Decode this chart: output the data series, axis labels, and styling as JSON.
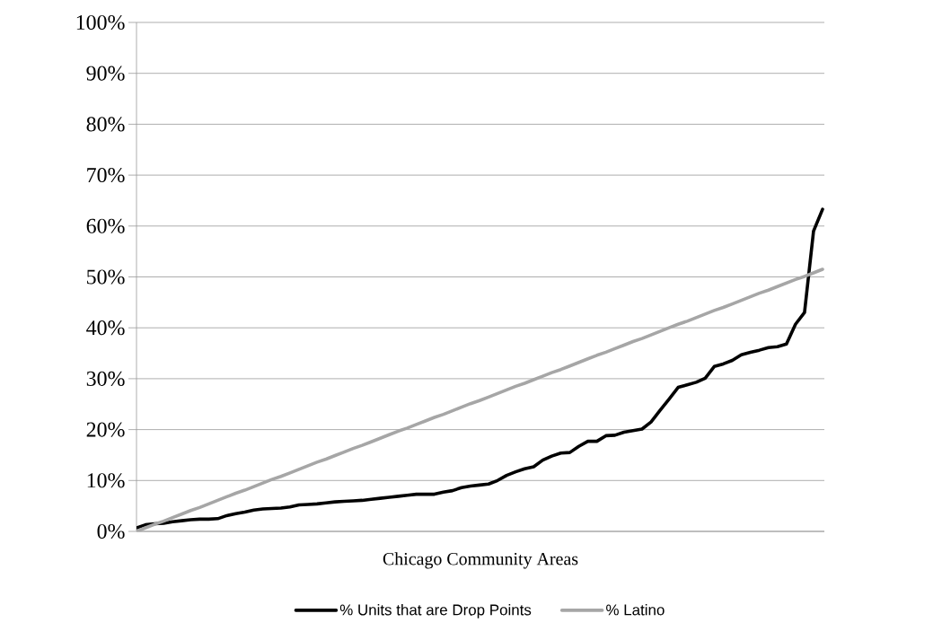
{
  "chart_data": {
    "type": "line",
    "xlabel": "Chicago Community Areas",
    "categories": [
      null,
      null,
      null,
      null,
      null,
      null,
      null,
      null,
      null,
      null,
      null,
      null,
      null,
      null,
      null,
      null,
      null,
      null,
      null,
      null,
      null,
      null,
      null,
      null,
      null,
      null,
      null,
      null,
      null,
      null,
      null,
      null,
      null,
      null,
      null,
      null,
      null,
      null,
      null,
      null,
      null,
      null,
      null,
      null,
      null,
      null,
      null,
      null,
      null,
      null,
      null,
      null,
      null,
      null,
      null,
      null,
      null,
      null,
      null,
      null,
      null,
      null,
      null,
      null,
      null,
      null,
      null,
      null,
      null,
      null,
      null,
      null,
      null,
      null,
      null,
      null,
      null
    ],
    "series": [
      {
        "name": "% Units that are Drop Points",
        "color": "#000000",
        "values": [
          0.7,
          1.3,
          1.5,
          1.6,
          1.9,
          2.1,
          2.3,
          2.4,
          2.4,
          2.5,
          3.1,
          3.5,
          3.8,
          4.2,
          4.4,
          4.5,
          4.6,
          4.8,
          5.2,
          5.3,
          5.4,
          5.6,
          5.8,
          5.9,
          6.0,
          6.1,
          6.3,
          6.5,
          6.7,
          6.9,
          7.1,
          7.3,
          7.3,
          7.3,
          7.7,
          8.0,
          8.6,
          8.9,
          9.1,
          9.3,
          10.0,
          11.0,
          11.7,
          12.3,
          12.7,
          14.0,
          14.8,
          15.4,
          15.5,
          16.7,
          17.7,
          17.7,
          18.8,
          18.9,
          19.5,
          19.8,
          20.1,
          21.5,
          23.8,
          26.0,
          28.3,
          28.8,
          29.3,
          30.1,
          32.4,
          32.9,
          33.6,
          34.7,
          35.2,
          35.6,
          36.1,
          36.3,
          36.8,
          40.7,
          43.0,
          59.0,
          63.3
        ]
      },
      {
        "name": "% Latino",
        "color": "#a6a6a6",
        "values": [
          0.0,
          0.7,
          1.4,
          2.0,
          2.7,
          3.4,
          4.1,
          4.7,
          5.4,
          6.1,
          6.8,
          7.5,
          8.1,
          8.8,
          9.5,
          10.2,
          10.8,
          11.5,
          12.2,
          12.9,
          13.6,
          14.2,
          14.9,
          15.6,
          16.3,
          16.9,
          17.6,
          18.3,
          19.0,
          19.7,
          20.3,
          21.0,
          21.7,
          22.4,
          23.0,
          23.7,
          24.4,
          25.1,
          25.7,
          26.4,
          27.1,
          27.8,
          28.5,
          29.1,
          29.8,
          30.5,
          31.2,
          31.8,
          32.5,
          33.2,
          33.9,
          34.6,
          35.2,
          35.9,
          36.6,
          37.3,
          37.9,
          38.6,
          39.3,
          40.0,
          40.7,
          41.3,
          42.0,
          42.7,
          43.4,
          44.0,
          44.7,
          45.4,
          46.1,
          46.8,
          47.4,
          48.1,
          48.8,
          49.5,
          50.1,
          50.8,
          51.5
        ]
      }
    ],
    "ylim": [
      0,
      100
    ],
    "yticks": [
      {
        "value": 0,
        "label": "0%"
      },
      {
        "value": 10,
        "label": "10%"
      },
      {
        "value": 20,
        "label": "20%"
      },
      {
        "value": 30,
        "label": "30%"
      },
      {
        "value": 40,
        "label": "40%"
      },
      {
        "value": 50,
        "label": "50%"
      },
      {
        "value": 60,
        "label": "60%"
      },
      {
        "value": 70,
        "label": "70%"
      },
      {
        "value": 80,
        "label": "80%"
      },
      {
        "value": 90,
        "label": "90%"
      },
      {
        "value": 100,
        "label": "100%"
      }
    ],
    "grid": "y",
    "legend": "bottom",
    "tick_labels": "y",
    "line_style": "solid",
    "marker": "none"
  }
}
